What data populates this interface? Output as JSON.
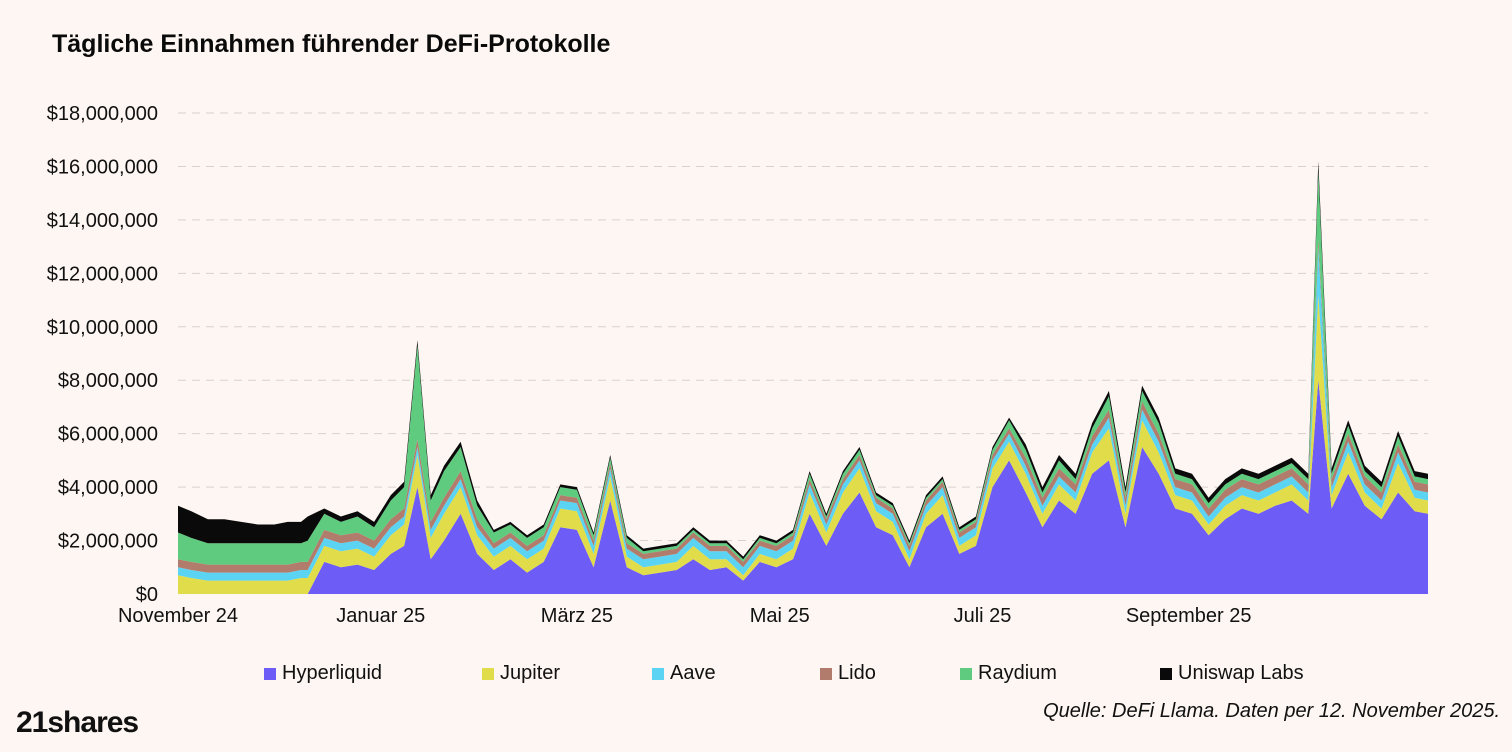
{
  "colors": {
    "Hyperliquid": "#6d5cf5",
    "Jupiter": "#e1dc4a",
    "Aave": "#5bd3f2",
    "Lido": "#b27c6c",
    "Raydium": "#5ecb7e",
    "Uniswap Labs": "#0a0a0a"
  },
  "logo": "21shares",
  "source": "Quelle: DeFi Llama. Daten per 12. November 2025.",
  "chart_data": {
    "type": "area",
    "stacked": true,
    "title": "Tägliche Einnahmen führender DeFi-Protokolle",
    "xlabel": "",
    "ylabel": "",
    "ylim": [
      0,
      18000000
    ],
    "y_ticks": [
      0,
      2000000,
      4000000,
      6000000,
      8000000,
      10000000,
      12000000,
      14000000,
      16000000,
      18000000
    ],
    "y_tick_labels": [
      "$0",
      "$2,000,000",
      "$4,000,000",
      "$6,000,000",
      "$8,000,000",
      "$10,000,000",
      "$12,000,000",
      "$14,000,000",
      "$16,000,000",
      "$18,000,000"
    ],
    "x_range": [
      "2024-11-01",
      "2025-11-12"
    ],
    "x_ticks": [
      "2024-11-01",
      "2025-01-01",
      "2025-03-01",
      "2025-05-01",
      "2025-07-01",
      "2025-09-01"
    ],
    "x_tick_labels": [
      "November 24",
      "Januar 25",
      "März 25",
      "Mai 25",
      "Juli 25",
      "September 25"
    ],
    "grid": "horizontal dashed",
    "legend": "bottom",
    "legend_labels": [
      "Hyperliquid",
      "Jupiter",
      "Aave",
      "Lido",
      "Raydium",
      "Uniswap Labs"
    ],
    "x": [
      "2024-11-01",
      "2024-11-05",
      "2024-11-10",
      "2024-11-15",
      "2024-11-20",
      "2024-11-25",
      "2024-11-30",
      "2024-12-04",
      "2024-12-08",
      "2024-12-10",
      "2024-12-15",
      "2024-12-20",
      "2024-12-25",
      "2024-12-30",
      "2025-01-04",
      "2025-01-08",
      "2025-01-12",
      "2025-01-16",
      "2025-01-20",
      "2025-01-25",
      "2025-01-30",
      "2025-02-04",
      "2025-02-09",
      "2025-02-14",
      "2025-02-19",
      "2025-02-24",
      "2025-03-01",
      "2025-03-06",
      "2025-03-11",
      "2025-03-16",
      "2025-03-21",
      "2025-03-26",
      "2025-03-31",
      "2025-04-05",
      "2025-04-10",
      "2025-04-15",
      "2025-04-20",
      "2025-04-25",
      "2025-04-30",
      "2025-05-05",
      "2025-05-10",
      "2025-05-15",
      "2025-05-20",
      "2025-05-25",
      "2025-05-30",
      "2025-06-04",
      "2025-06-09",
      "2025-06-14",
      "2025-06-19",
      "2025-06-24",
      "2025-06-29",
      "2025-07-04",
      "2025-07-09",
      "2025-07-14",
      "2025-07-19",
      "2025-07-24",
      "2025-07-29",
      "2025-08-03",
      "2025-08-08",
      "2025-08-13",
      "2025-08-18",
      "2025-08-23",
      "2025-08-28",
      "2025-09-02",
      "2025-09-07",
      "2025-09-12",
      "2025-09-17",
      "2025-09-22",
      "2025-09-27",
      "2025-10-02",
      "2025-10-07",
      "2025-10-10",
      "2025-10-14",
      "2025-10-19",
      "2025-10-24",
      "2025-10-29",
      "2025-11-03",
      "2025-11-08",
      "2025-11-12"
    ],
    "series": [
      {
        "name": "Hyperliquid",
        "values": [
          0,
          0,
          0,
          0,
          0,
          0,
          0,
          0,
          0,
          0,
          1200000,
          1000000,
          1100000,
          900000,
          1500000,
          1800000,
          4000000,
          1300000,
          2000000,
          3000000,
          1500000,
          900000,
          1300000,
          800000,
          1200000,
          2500000,
          2400000,
          1000000,
          3500000,
          1000000,
          700000,
          800000,
          900000,
          1300000,
          900000,
          1000000,
          500000,
          1200000,
          1000000,
          1300000,
          3000000,
          1800000,
          3000000,
          3800000,
          2500000,
          2200000,
          1000000,
          2500000,
          3000000,
          1500000,
          1800000,
          4000000,
          5000000,
          3800000,
          2500000,
          3500000,
          3000000,
          4500000,
          5000000,
          2500000,
          5500000,
          4500000,
          3200000,
          3000000,
          2200000,
          2800000,
          3200000,
          3000000,
          3300000,
          3500000,
          3000000,
          8000000,
          3200000,
          4500000,
          3300000,
          2800000,
          3800000,
          3100000,
          3000000
        ]
      },
      {
        "name": "Jupiter",
        "values": [
          700000,
          600000,
          500000,
          500000,
          500000,
          500000,
          500000,
          500000,
          600000,
          600000,
          600000,
          600000,
          600000,
          500000,
          700000,
          800000,
          1200000,
          800000,
          1000000,
          1000000,
          700000,
          500000,
          500000,
          500000,
          500000,
          700000,
          700000,
          500000,
          900000,
          400000,
          300000,
          300000,
          300000,
          500000,
          400000,
          300000,
          200000,
          300000,
          300000,
          400000,
          800000,
          500000,
          800000,
          900000,
          600000,
          500000,
          300000,
          500000,
          700000,
          300000,
          400000,
          700000,
          700000,
          700000,
          500000,
          600000,
          500000,
          800000,
          1200000,
          500000,
          1000000,
          800000,
          500000,
          500000,
          400000,
          500000,
          500000,
          500000,
          500000,
          600000,
          500000,
          3200000,
          500000,
          800000,
          500000,
          400000,
          1100000,
          500000,
          500000
        ]
      },
      {
        "name": "Aave",
        "values": [
          300000,
          300000,
          300000,
          300000,
          300000,
          300000,
          300000,
          300000,
          300000,
          300000,
          300000,
          300000,
          300000,
          300000,
          300000,
          300000,
          300000,
          300000,
          300000,
          300000,
          300000,
          300000,
          300000,
          300000,
          300000,
          300000,
          300000,
          300000,
          300000,
          300000,
          300000,
          300000,
          300000,
          300000,
          300000,
          300000,
          300000,
          300000,
          300000,
          300000,
          300000,
          300000,
          300000,
          300000,
          300000,
          300000,
          300000,
          300000,
          300000,
          300000,
          300000,
          300000,
          300000,
          300000,
          300000,
          300000,
          300000,
          300000,
          400000,
          300000,
          400000,
          400000,
          300000,
          300000,
          300000,
          300000,
          300000,
          300000,
          300000,
          300000,
          300000,
          1800000,
          300000,
          400000,
          300000,
          300000,
          400000,
          300000,
          300000
        ]
      },
      {
        "name": "Lido",
        "values": [
          300000,
          300000,
          300000,
          300000,
          300000,
          300000,
          300000,
          300000,
          300000,
          300000,
          300000,
          300000,
          300000,
          300000,
          300000,
          300000,
          300000,
          300000,
          300000,
          300000,
          300000,
          200000,
          200000,
          200000,
          200000,
          200000,
          200000,
          200000,
          200000,
          200000,
          200000,
          200000,
          200000,
          200000,
          200000,
          200000,
          200000,
          200000,
          200000,
          200000,
          200000,
          200000,
          200000,
          200000,
          200000,
          200000,
          200000,
          200000,
          200000,
          200000,
          200000,
          200000,
          200000,
          300000,
          300000,
          300000,
          300000,
          300000,
          300000,
          300000,
          300000,
          300000,
          300000,
          300000,
          300000,
          300000,
          300000,
          300000,
          300000,
          300000,
          300000,
          300000,
          300000,
          300000,
          300000,
          300000,
          300000,
          300000,
          300000
        ]
      },
      {
        "name": "Raydium",
        "values": [
          1000000,
          900000,
          800000,
          800000,
          800000,
          800000,
          800000,
          800000,
          700000,
          800000,
          600000,
          500000,
          600000,
          500000,
          700000,
          800000,
          3500000,
          800000,
          1000000,
          900000,
          500000,
          400000,
          300000,
          300000,
          300000,
          300000,
          300000,
          200000,
          200000,
          200000,
          100000,
          100000,
          100000,
          100000,
          100000,
          100000,
          100000,
          100000,
          100000,
          100000,
          200000,
          100000,
          200000,
          200000,
          100000,
          100000,
          100000,
          100000,
          100000,
          100000,
          100000,
          200000,
          300000,
          300000,
          200000,
          300000,
          200000,
          300000,
          500000,
          200000,
          400000,
          400000,
          200000,
          200000,
          200000,
          200000,
          200000,
          200000,
          200000,
          200000,
          200000,
          2500000,
          200000,
          300000,
          200000,
          200000,
          300000,
          200000,
          200000
        ]
      },
      {
        "name": "Uniswap Labs",
        "values": [
          1000000,
          1000000,
          900000,
          900000,
          800000,
          700000,
          700000,
          800000,
          800000,
          900000,
          200000,
          200000,
          200000,
          200000,
          200000,
          200000,
          200000,
          200000,
          200000,
          200000,
          200000,
          100000,
          100000,
          100000,
          100000,
          100000,
          100000,
          100000,
          100000,
          100000,
          100000,
          100000,
          100000,
          100000,
          100000,
          100000,
          100000,
          100000,
          100000,
          100000,
          100000,
          100000,
          100000,
          100000,
          100000,
          100000,
          100000,
          100000,
          100000,
          100000,
          100000,
          100000,
          100000,
          200000,
          200000,
          200000,
          200000,
          200000,
          200000,
          200000,
          200000,
          200000,
          200000,
          200000,
          200000,
          200000,
          200000,
          200000,
          200000,
          200000,
          200000,
          400000,
          200000,
          200000,
          200000,
          200000,
          200000,
          200000,
          200000
        ]
      }
    ]
  }
}
